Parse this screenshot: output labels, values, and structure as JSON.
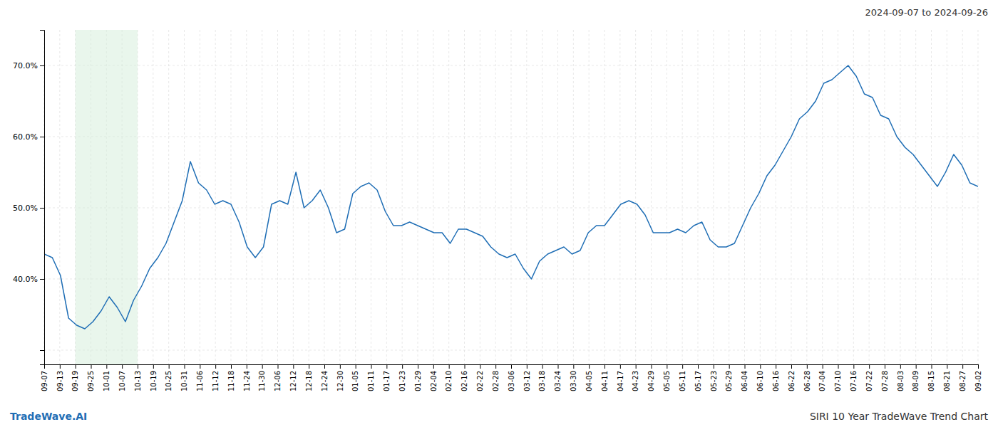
{
  "chart_data": {
    "type": "line",
    "title": "SIRI 10 Year TradeWave Trend Chart",
    "subtitle": "2024-09-07 to 2024-09-26",
    "annotations": [
      "TradeWave.AI"
    ],
    "color": "#1f6eb5",
    "values": [
      43.5,
      43.0,
      40.5,
      34.5,
      33.5,
      33.0,
      34.0,
      35.5,
      37.5,
      36.0,
      34.0,
      37.0,
      39.0,
      41.5,
      43.0,
      45.0,
      48.0,
      51.0,
      56.5,
      53.5,
      52.5,
      50.5,
      51.0,
      50.5,
      48.0,
      44.5,
      43.0,
      44.5,
      50.5,
      51.0,
      50.5,
      55.0,
      50.0,
      51.0,
      52.5,
      50.0,
      46.5,
      47.0,
      52.0,
      53.0,
      53.5,
      52.5,
      49.5,
      47.5,
      47.5,
      48.0,
      47.5,
      47.0,
      46.5,
      46.5,
      45.0,
      47.0,
      47.0,
      46.5,
      46.0,
      44.5,
      43.5,
      43.0,
      43.5,
      41.5,
      40.0,
      42.5,
      43.5,
      44.0,
      44.5,
      43.5,
      44.0,
      46.5,
      47.5,
      47.5,
      49.0,
      50.5,
      51.0,
      50.5,
      49.0,
      46.5,
      46.5,
      46.5,
      47.0,
      46.5,
      47.5,
      48.0,
      45.5,
      44.5,
      44.5,
      45.0,
      47.5,
      50.0,
      52.0,
      54.5,
      56.0,
      58.0,
      60.0,
      62.5,
      63.5,
      65.0,
      67.5,
      68.0,
      69.0,
      70.0,
      68.5,
      66.0,
      65.5,
      63.0,
      62.5,
      60.0,
      58.5,
      57.5,
      56.0,
      54.5,
      53.0,
      55.0,
      57.5,
      56.0,
      53.5,
      53.0
    ],
    "shaded_region": {
      "x": [
        3.8333333333333335,
        11.5
      ],
      "color": "#d4edda"
    },
    "xlim": [
      0,
      115
    ],
    "xticks": [
      {
        "value": 0,
        "label": "09-07"
      },
      {
        "value": 1.9166666666666667,
        "label": "09-13"
      },
      {
        "value": 3.8333333333333335,
        "label": "09-19"
      },
      {
        "value": 5.75,
        "label": "09-25"
      },
      {
        "value": 7.666666666666667,
        "label": "10-01"
      },
      {
        "value": 9.583333333333334,
        "label": "10-07"
      },
      {
        "value": 11.5,
        "label": "10-13"
      },
      {
        "value": 13.416666666666668,
        "label": "10-19"
      },
      {
        "value": 15.333333333333334,
        "label": "10-25"
      },
      {
        "value": 17.25,
        "label": "10-31"
      },
      {
        "value": 19.166666666666668,
        "label": "11-06"
      },
      {
        "value": 21.083333333333336,
        "label": "11-12"
      },
      {
        "value": 23,
        "label": "11-18"
      },
      {
        "value": 24.916666666666668,
        "label": "11-24"
      },
      {
        "value": 26.833333333333336,
        "label": "11-30"
      },
      {
        "value": 28.75,
        "label": "12-06"
      },
      {
        "value": 30.666666666666668,
        "label": "12-12"
      },
      {
        "value": 32.583333333333336,
        "label": "12-18"
      },
      {
        "value": 34.5,
        "label": "12-24"
      },
      {
        "value": 36.41666666666667,
        "label": "12-30"
      },
      {
        "value": 38.333333333333336,
        "label": "01-05"
      },
      {
        "value": 40.25,
        "label": "01-11"
      },
      {
        "value": 42.16666666666667,
        "label": "01-17"
      },
      {
        "value": 44.083333333333336,
        "label": "01-23"
      },
      {
        "value": 46,
        "label": "01-29"
      },
      {
        "value": 47.91666666666667,
        "label": "02-04"
      },
      {
        "value": 49.833333333333336,
        "label": "02-10"
      },
      {
        "value": 51.75,
        "label": "02-16"
      },
      {
        "value": 53.66666666666667,
        "label": "02-22"
      },
      {
        "value": 55.583333333333336,
        "label": "02-28"
      },
      {
        "value": 57.5,
        "label": "03-06"
      },
      {
        "value": 59.41666666666667,
        "label": "03-12"
      },
      {
        "value": 61.333333333333336,
        "label": "03-18"
      },
      {
        "value": 63.25,
        "label": "03-24"
      },
      {
        "value": 65.16666666666667,
        "label": "03-30"
      },
      {
        "value": 67.08333333333334,
        "label": "04-05"
      },
      {
        "value": 69,
        "label": "04-11"
      },
      {
        "value": 70.91666666666667,
        "label": "04-17"
      },
      {
        "value": 72.83333333333334,
        "label": "04-23"
      },
      {
        "value": 74.75,
        "label": "04-29"
      },
      {
        "value": 76.66666666666667,
        "label": "05-05"
      },
      {
        "value": 78.58333333333334,
        "label": "05-11"
      },
      {
        "value": 80.5,
        "label": "05-17"
      },
      {
        "value": 82.41666666666667,
        "label": "05-23"
      },
      {
        "value": 84.33333333333334,
        "label": "05-29"
      },
      {
        "value": 86.25,
        "label": "06-04"
      },
      {
        "value": 88.16666666666667,
        "label": "06-10"
      },
      {
        "value": 90.08333333333334,
        "label": "06-16"
      },
      {
        "value": 92,
        "label": "06-22"
      },
      {
        "value": 93.91666666666667,
        "label": "06-28"
      },
      {
        "value": 95.83333333333334,
        "label": "07-04"
      },
      {
        "value": 97.75,
        "label": "07-10"
      },
      {
        "value": 99.66666666666667,
        "label": "07-16"
      },
      {
        "value": 101.58333333333334,
        "label": "07-22"
      },
      {
        "value": 103.5,
        "label": "07-28"
      },
      {
        "value": 105.41666666666667,
        "label": "08-03"
      },
      {
        "value": 107.33333333333334,
        "label": "08-09"
      },
      {
        "value": 109.25,
        "label": "08-15"
      },
      {
        "value": 111.16666666666667,
        "label": "08-21"
      },
      {
        "value": 113.08333333333334,
        "label": "08-27"
      },
      {
        "value": 115,
        "label": "09-02"
      }
    ],
    "ylim": [
      28,
      75
    ],
    "yticks": [
      {
        "value": 30,
        "label": null
      },
      {
        "value": 40,
        "label": "40.0%"
      },
      {
        "value": 50,
        "label": "50.0%"
      },
      {
        "value": 60,
        "label": "60.0%"
      },
      {
        "value": 70,
        "label": "70.0%"
      }
    ],
    "grid": true
  }
}
